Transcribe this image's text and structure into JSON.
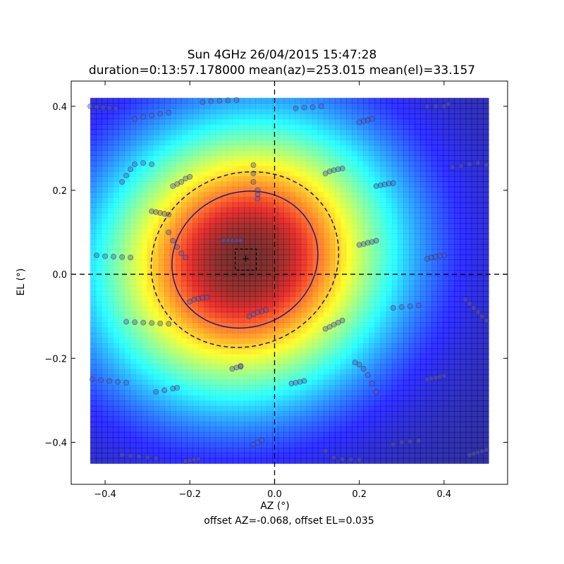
{
  "chart_data": {
    "type": "heatmap",
    "title": "Sun 4GHz 26/04/2015 15:47:28",
    "subtitle": "duration=0:13:57.178000 mean(az)=253.015 mean(el)=33.157",
    "xlabel": "AZ (°)",
    "ylabel": "EL (°)",
    "footer": "offset AZ=-0.068, offset EL=0.035",
    "xlim": [
      -0.48,
      0.55
    ],
    "ylim": [
      -0.5,
      0.46
    ],
    "xticks": [
      -0.4,
      -0.2,
      0.0,
      0.2,
      0.4
    ],
    "yticks": [
      -0.4,
      -0.2,
      0.0,
      0.2,
      0.4
    ],
    "xtick_labels": [
      "−0.4",
      "−0.2",
      "0.0",
      "0.2",
      "0.4"
    ],
    "ytick_labels": [
      "−0.4",
      "−0.2",
      "0.0",
      "0.2",
      "0.4"
    ],
    "colormap": "jet",
    "heatmap_extent": {
      "x": [
        -0.435,
        0.505
      ],
      "y": [
        -0.45,
        0.42
      ]
    },
    "beam_center": {
      "az": -0.068,
      "el": 0.035
    },
    "half_power_ellipse": {
      "center": [
        -0.07,
        0.035
      ],
      "rx": 0.175,
      "ry": 0.16,
      "rotation_deg": 25,
      "style": "solid",
      "color": "#1a1a8c"
    },
    "outer_ellipse": {
      "center": [
        -0.07,
        0.035
      ],
      "rx": 0.225,
      "ry": 0.205,
      "rotation_deg": 25,
      "style": "dashed",
      "color": "#1a1a8c"
    },
    "center_box": {
      "x": [
        -0.093,
        -0.043
      ],
      "y": [
        0.01,
        0.06
      ],
      "style": "dashed"
    },
    "center_marker": {
      "az": -0.068,
      "el": 0.035,
      "color": "#cc0000"
    },
    "crosshair": {
      "x": 0.0,
      "y": 0.0,
      "style": "dashed"
    },
    "scan_tracks": [
      {
        "x": [
          -0.435,
          -0.42,
          -0.405,
          -0.39,
          -0.375
        ],
        "y": [
          0.4,
          0.398,
          0.397,
          0.396,
          0.395
        ]
      },
      {
        "x": [
          -0.33,
          -0.31,
          -0.29,
          -0.27,
          -0.25
        ],
        "y": [
          0.37,
          0.375,
          0.378,
          0.382,
          0.385
        ]
      },
      {
        "x": [
          -0.17,
          -0.15,
          -0.13,
          -0.11,
          -0.09
        ],
        "y": [
          0.41,
          0.412,
          0.413,
          0.414,
          0.415
        ]
      },
      {
        "x": [
          0.05,
          0.07,
          0.09,
          0.11
        ],
        "y": [
          0.395,
          0.397,
          0.398,
          0.4
        ]
      },
      {
        "x": [
          0.2,
          0.21,
          0.22,
          0.23
        ],
        "y": [
          0.362,
          0.365,
          0.367,
          0.37
        ]
      },
      {
        "x": [
          0.36,
          0.38,
          0.4,
          0.41
        ],
        "y": [
          0.4,
          0.4,
          0.4,
          0.405
        ]
      },
      {
        "x": [
          -0.36,
          -0.35,
          -0.34,
          -0.33,
          -0.31,
          -0.29
        ],
        "y": [
          0.22,
          0.235,
          0.25,
          0.262,
          0.265,
          0.262
        ]
      },
      {
        "x": [
          -0.24,
          -0.23,
          -0.22,
          -0.21,
          -0.2
        ],
        "y": [
          0.21,
          0.215,
          0.22,
          0.228,
          0.232
        ]
      },
      {
        "x": [
          0.12,
          0.13,
          0.14,
          0.15,
          0.16
        ],
        "y": [
          0.24,
          0.245,
          0.248,
          0.25,
          0.252
        ]
      },
      {
        "x": [
          0.24,
          0.25,
          0.26,
          0.27,
          0.28
        ],
        "y": [
          0.21,
          0.212,
          0.214,
          0.216,
          0.217
        ]
      },
      {
        "x": [
          0.42,
          0.44,
          0.46,
          0.48,
          0.5
        ],
        "y": [
          0.255,
          0.258,
          0.262,
          0.265,
          0.26
        ]
      },
      {
        "x": [
          -0.05,
          -0.05,
          -0.05,
          -0.04,
          -0.04,
          -0.04
        ],
        "y": [
          0.26,
          0.24,
          0.22,
          0.2,
          0.19,
          0.18
        ]
      },
      {
        "x": [
          -0.42,
          -0.4,
          -0.38,
          -0.36,
          -0.34
        ],
        "y": [
          0.045,
          0.043,
          0.042,
          0.041,
          0.04
        ]
      },
      {
        "x": [
          -0.29,
          -0.28,
          -0.27,
          -0.26,
          -0.25
        ],
        "y": [
          0.15,
          0.148,
          0.146,
          0.144,
          0.142
        ]
      },
      {
        "x": [
          -0.25,
          -0.24,
          -0.23,
          -0.22,
          -0.21
        ],
        "y": [
          0.1,
          0.08,
          0.065,
          0.05,
          0.04
        ]
      },
      {
        "x": [
          -0.12,
          -0.11,
          -0.1,
          -0.09,
          -0.08
        ],
        "y": [
          0.08,
          0.08,
          0.08,
          0.08,
          0.08
        ]
      },
      {
        "x": [
          0.2,
          0.21,
          0.22,
          0.23,
          0.24
        ],
        "y": [
          0.07,
          0.072,
          0.075,
          0.077,
          0.08
        ]
      },
      {
        "x": [
          0.36,
          0.37,
          0.38,
          0.39,
          0.4
        ],
        "y": [
          0.037,
          0.04,
          0.042,
          0.044,
          0.045
        ]
      },
      {
        "x": [
          -0.35,
          -0.33,
          -0.31,
          -0.29,
          -0.27,
          -0.25
        ],
        "y": [
          -0.113,
          -0.114,
          -0.115,
          -0.116,
          -0.117,
          -0.118
        ]
      },
      {
        "x": [
          -0.2,
          -0.19,
          -0.18,
          -0.17,
          -0.16
        ],
        "y": [
          -0.065,
          -0.06,
          -0.058,
          -0.056,
          -0.055
        ]
      },
      {
        "x": [
          -0.06,
          -0.05,
          -0.04,
          -0.03,
          -0.02
        ],
        "y": [
          -0.1,
          -0.095,
          -0.09,
          -0.088,
          -0.085
        ]
      },
      {
        "x": [
          0.12,
          0.13,
          0.14,
          0.15,
          0.16
        ],
        "y": [
          -0.13,
          -0.125,
          -0.12,
          -0.115,
          -0.11
        ]
      },
      {
        "x": [
          0.28,
          0.3,
          0.32,
          0.34
        ],
        "y": [
          -0.08,
          -0.078,
          -0.076,
          -0.074
        ]
      },
      {
        "x": [
          0.45,
          0.46,
          0.47,
          0.48,
          0.49,
          0.5
        ],
        "y": [
          -0.06,
          -0.07,
          -0.08,
          -0.09,
          -0.1,
          -0.11
        ]
      },
      {
        "x": [
          -0.43,
          -0.41,
          -0.39,
          -0.37,
          -0.35
        ],
        "y": [
          -0.25,
          -0.252,
          -0.254,
          -0.256,
          -0.258
        ]
      },
      {
        "x": [
          -0.28,
          -0.26,
          -0.24,
          -0.23
        ],
        "y": [
          -0.28,
          -0.276,
          -0.272,
          -0.27
        ]
      },
      {
        "x": [
          -0.1,
          -0.09,
          -0.08,
          -0.08
        ],
        "y": [
          -0.225,
          -0.222,
          -0.22,
          -0.218
        ]
      },
      {
        "x": [
          0.04,
          0.05,
          0.06,
          0.07
        ],
        "y": [
          -0.26,
          -0.258,
          -0.256,
          -0.254
        ]
      },
      {
        "x": [
          0.19,
          0.2,
          0.21,
          0.22,
          0.23,
          0.24
        ],
        "y": [
          -0.21,
          -0.215,
          -0.225,
          -0.24,
          -0.26,
          -0.28
        ]
      },
      {
        "x": [
          0.36,
          0.37,
          0.38,
          0.39,
          0.4
        ],
        "y": [
          -0.25,
          -0.248,
          -0.246,
          -0.244,
          -0.242
        ]
      },
      {
        "x": [
          -0.36,
          -0.34,
          -0.32,
          -0.3,
          -0.28
        ],
        "y": [
          -0.43,
          -0.432,
          -0.434,
          -0.436,
          -0.438
        ]
      },
      {
        "x": [
          -0.21,
          -0.2,
          -0.19,
          -0.18
        ],
        "y": [
          -0.445,
          -0.443,
          -0.441,
          -0.44
        ]
      },
      {
        "x": [
          -0.05,
          -0.04,
          -0.03
        ],
        "y": [
          -0.405,
          -0.4,
          -0.395
        ]
      },
      {
        "x": [
          0.12,
          0.14,
          0.16,
          0.18,
          0.2
        ],
        "y": [
          -0.42,
          -0.436,
          -0.44,
          -0.441,
          -0.442
        ]
      },
      {
        "x": [
          0.28,
          0.3,
          0.32,
          0.34
        ],
        "y": [
          -0.405,
          -0.4,
          -0.398,
          -0.396
        ]
      },
      {
        "x": [
          0.46,
          0.47,
          0.48,
          0.49,
          0.5
        ],
        "y": [
          -0.43,
          -0.427,
          -0.424,
          -0.421,
          -0.418
        ]
      }
    ]
  }
}
